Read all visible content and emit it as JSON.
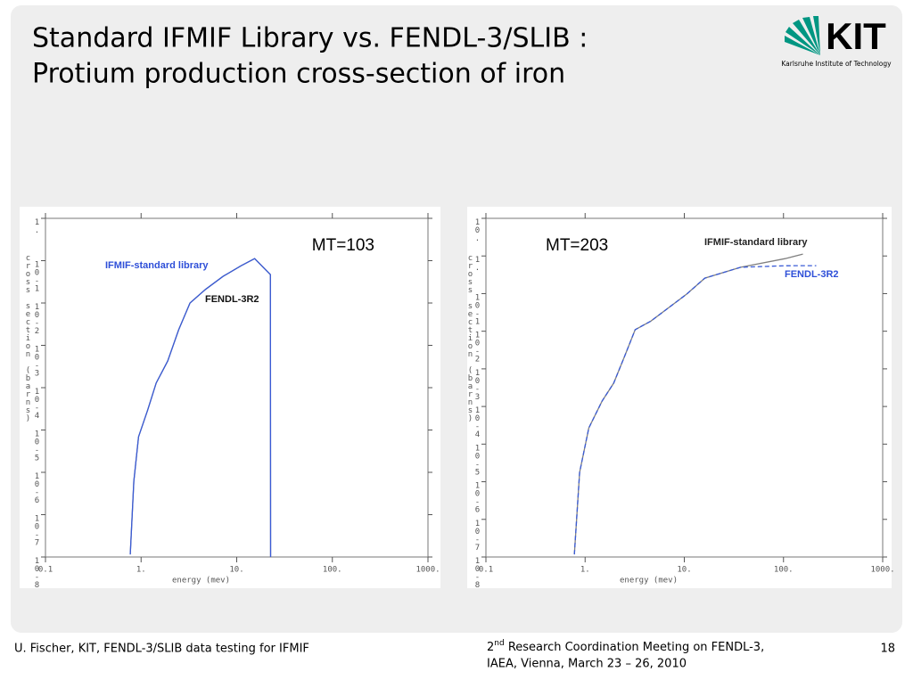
{
  "header": {
    "title": [
      "Standard IFMIF Library vs. FENDL-3/SLIB :",
      "Protium production cross-section of iron"
    ],
    "logo": {
      "text": "KIT",
      "subtitle": "Karlsruhe Institute of Technology"
    }
  },
  "chart_data": [
    {
      "type": "line",
      "annotation": "MT=103",
      "xlabel": "energy (mev)",
      "ylabel": "cross section (barns)",
      "xscale": "log",
      "yscale": "log",
      "xlim": [
        0.1,
        1000
      ],
      "xticks": [
        {
          "value": 0.1,
          "label": "0.1"
        },
        {
          "value": 1,
          "label": "1."
        },
        {
          "value": 10,
          "label": "10."
        },
        {
          "value": 100,
          "label": "100."
        },
        {
          "value": 1000,
          "label": "1000."
        }
      ],
      "ylim": [
        1e-08,
        1
      ],
      "yticks": [
        {
          "value": 1,
          "label": "1."
        },
        {
          "value": 0.1,
          "label": "10-1"
        },
        {
          "value": 0.01,
          "label": "10-2"
        },
        {
          "value": 0.001,
          "label": "10-3"
        },
        {
          "value": 0.0001,
          "label": "10-4"
        },
        {
          "value": 1e-05,
          "label": "10-5"
        },
        {
          "value": 1e-06,
          "label": "10-6"
        },
        {
          "value": 1e-07,
          "label": "10-7"
        },
        {
          "value": 1e-08,
          "label": "10-8"
        }
      ],
      "x": [
        0.77,
        0.84,
        0.94,
        1.17,
        1.44,
        1.9,
        2.47,
        3.25,
        4.71,
        7.2,
        11.1,
        15.4,
        22.5,
        22.6
      ],
      "series": [
        {
          "name": "IFMIF-standard library",
          "color": "#808080",
          "label_color": "#2e4fd8",
          "line_style": "solid",
          "values": [
            1.15e-08,
            6.17e-07,
            6.92e-06,
            2.95e-05,
            0.000129,
            0.000427,
            0.00234,
            0.01,
            0.0209,
            0.0427,
            0.0759,
            0.112,
            0.0468,
            1e-08
          ]
        },
        {
          "name": "FENDL-3R2",
          "color": "#3a5bd6",
          "label_color": "#111111",
          "line_style": "solid",
          "values": [
            1.15e-08,
            6.17e-07,
            6.92e-06,
            2.95e-05,
            0.000129,
            0.000427,
            0.00234,
            0.01,
            0.0209,
            0.0427,
            0.0759,
            0.112,
            0.0468,
            1e-08
          ]
        }
      ]
    },
    {
      "type": "line",
      "annotation": "MT=203",
      "xlabel": "energy (mev)",
      "ylabel": "cross section (barns)",
      "xscale": "log",
      "yscale": "log",
      "xlim": [
        0.1,
        1000
      ],
      "xticks": [
        {
          "value": 0.1,
          "label": "0.1"
        },
        {
          "value": 1,
          "label": "1."
        },
        {
          "value": 10,
          "label": "10."
        },
        {
          "value": 100,
          "label": "100."
        },
        {
          "value": 1000,
          "label": "1000."
        }
      ],
      "ylim": [
        1e-08,
        10
      ],
      "yticks": [
        {
          "value": 10,
          "label": "10."
        },
        {
          "value": 1,
          "label": "1."
        },
        {
          "value": 0.1,
          "label": "10-1"
        },
        {
          "value": 0.01,
          "label": "10-2"
        },
        {
          "value": 0.001,
          "label": "10-3"
        },
        {
          "value": 0.0001,
          "label": "10-4"
        },
        {
          "value": 1e-05,
          "label": "10-5"
        },
        {
          "value": 1e-06,
          "label": "10-6"
        },
        {
          "value": 1e-07,
          "label": "10-7"
        },
        {
          "value": 1e-08,
          "label": "10-8"
        }
      ],
      "x": [
        0.78,
        0.88,
        1.09,
        1.48,
        1.94,
        2.5,
        3.2,
        4.6,
        7.0,
        10.6,
        16.1,
        37,
        104,
        157,
        214
      ],
      "series": [
        {
          "name": "IFMIF-standard library",
          "color": "#808080",
          "label_color": "#222222",
          "line_style": "solid",
          "values": [
            1.17e-08,
            1.78e-06,
            2.69e-05,
            0.000138,
            0.000417,
            0.00214,
            0.011,
            0.0186,
            0.0427,
            0.0977,
            0.257,
            0.501,
            0.851,
            1.12,
            null
          ]
        },
        {
          "name": "FENDL-3R2",
          "color": "#3a5bd6",
          "label_color": "#2e4fd8",
          "line_style": "dashed",
          "values": [
            1.17e-08,
            1.78e-06,
            2.69e-05,
            0.000138,
            0.000417,
            0.00214,
            0.011,
            0.0186,
            0.0427,
            0.0977,
            0.257,
            0.501,
            0.55,
            0.554,
            0.554
          ]
        }
      ]
    }
  ],
  "footer": {
    "left": "U. Fischer, KIT, FENDL-3/SLIB data testing for IFMIF",
    "middle": {
      "line1": {
        "number": "2",
        "superscript": "nd",
        "rest": " Research Coordination Meeting on FENDL-3,"
      },
      "line2": "IAEA, Vienna, March 23 – 26, 2010"
    },
    "page": "18"
  }
}
